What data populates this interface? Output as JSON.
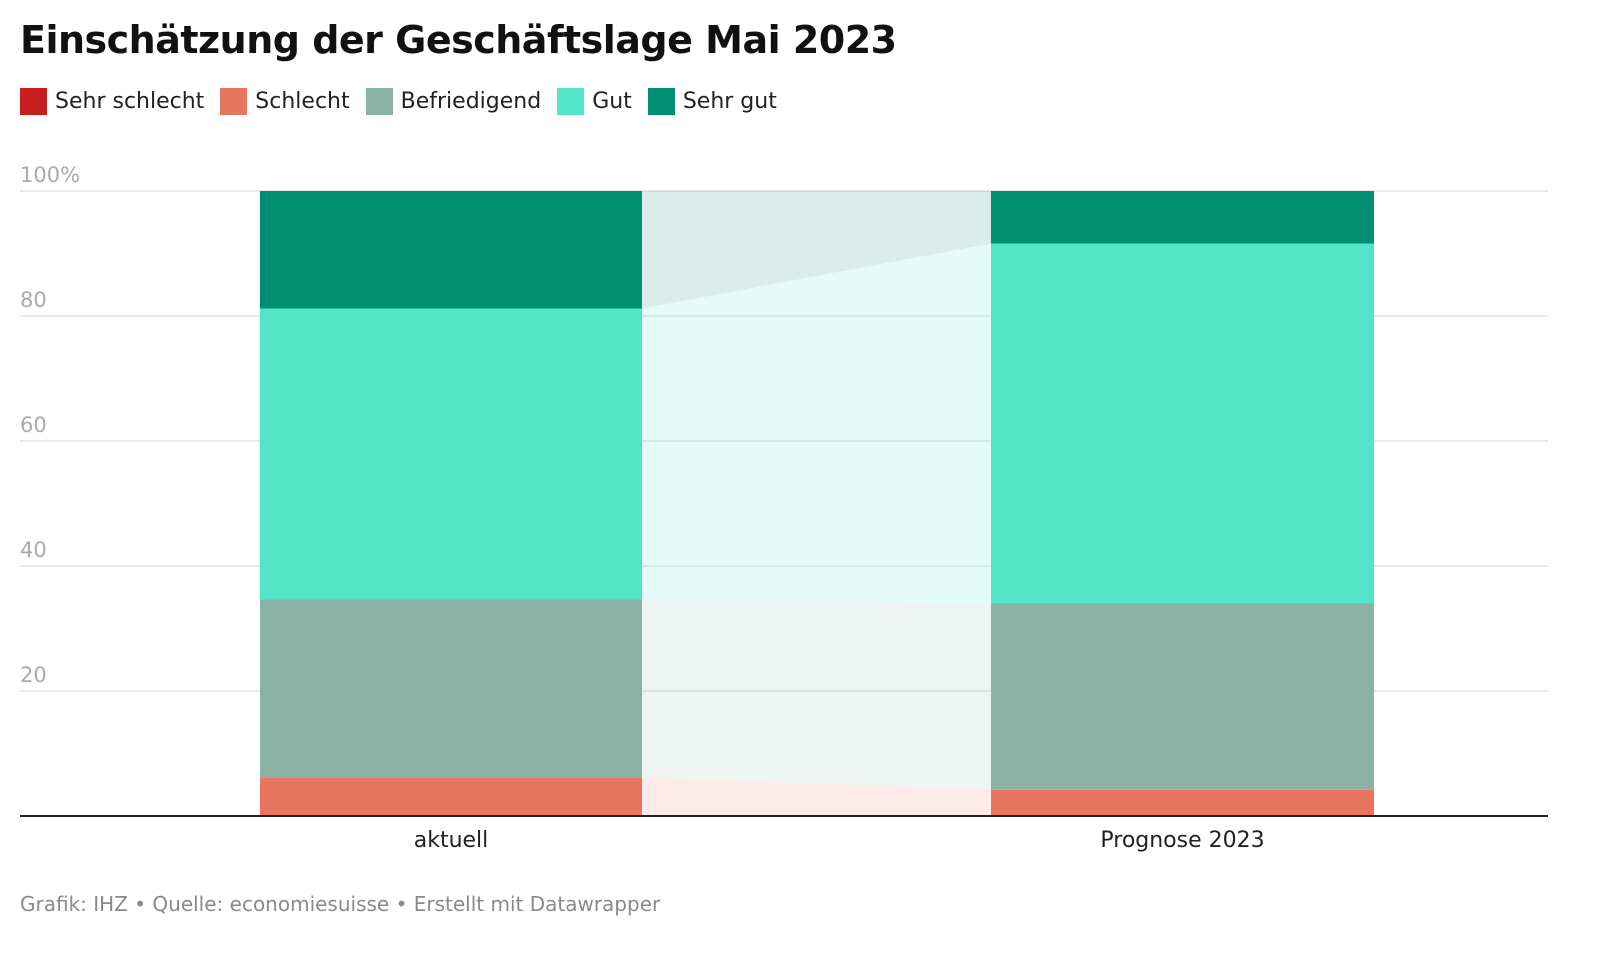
{
  "title": "Einschätzung der Geschäftslage Mai 2023",
  "footer": "Grafik: IHZ • Quelle: economiesuisse • Erstellt mit Datawrapper",
  "chart_data": {
    "type": "bar",
    "stacked": true,
    "title": "Einschätzung der Geschäftslage Mai 2023",
    "categories": [
      "aktuell",
      "Prognose 2023"
    ],
    "ylim": [
      0,
      100
    ],
    "yticks": [
      20,
      40,
      60,
      80,
      100
    ],
    "ytick_labels": [
      "20",
      "40",
      "60",
      "80",
      "100%"
    ],
    "grid": true,
    "legend": "top-left",
    "series": [
      {
        "name": "Sehr schlecht",
        "color": "#c71e1d",
        "values": [
          0,
          0
        ]
      },
      {
        "name": "Schlecht",
        "color": "#e8765f",
        "values": [
          6.2,
          4.2
        ]
      },
      {
        "name": "Befriedigend",
        "color": "#8ab2a5",
        "values": [
          28.5,
          29.8
        ]
      },
      {
        "name": "Gut",
        "color": "#53e5c8",
        "values": [
          46.5,
          57.6
        ]
      },
      {
        "name": "Sehr gut",
        "color": "#008f73",
        "values": [
          18.8,
          8.4
        ]
      }
    ]
  }
}
